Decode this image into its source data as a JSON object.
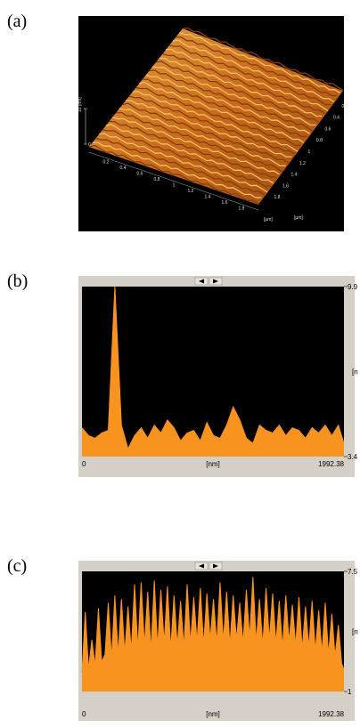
{
  "figure": {
    "labels": [
      "(a)",
      "(b)",
      "(c)"
    ]
  },
  "surface": {
    "xlim": [
      0,
      2
    ],
    "xticks": [
      0.2,
      0.4,
      0.6,
      0.8,
      1.0,
      1.2,
      1.4,
      1.6,
      1.8
    ],
    "xunit": "[µm]",
    "ylim": [
      0,
      2
    ],
    "yticks": [
      0.2,
      0.4,
      0.6,
      0.8,
      1.0,
      1.2,
      1.4,
      1.6,
      1.8
    ],
    "yunit": "[µm]",
    "zlim": [
      0,
      15
    ],
    "zticks": [
      0,
      {
        "value": 15,
        "label": "15 [nm]"
      }
    ]
  },
  "chart_data": [
    {
      "type": "area",
      "color": "#f7931e",
      "xlabel": "[nm]",
      "ylabel": "[n",
      "xlim": [
        0,
        1992.38
      ],
      "xticks": [
        0,
        1992.38
      ],
      "ylim": [
        3.4,
        9.9
      ],
      "yticks": [
        9.9,
        3.4
      ],
      "x": [
        0,
        50,
        100,
        150,
        200,
        250,
        300,
        350,
        400,
        450,
        500,
        550,
        600,
        650,
        700,
        750,
        800,
        850,
        900,
        950,
        1000,
        1050,
        1100,
        1150,
        1200,
        1250,
        1300,
        1350,
        1400,
        1450,
        1500,
        1550,
        1600,
        1650,
        1700,
        1750,
        1800,
        1850,
        1900,
        1950,
        1992.38
      ],
      "values": [
        4.5,
        4.2,
        4.1,
        4.3,
        4.4,
        9.9,
        4.6,
        3.7,
        4.2,
        4.5,
        4.1,
        4.6,
        4.3,
        4.8,
        4.5,
        4.0,
        4.3,
        4.4,
        4.0,
        4.7,
        4.2,
        4.1,
        4.6,
        5.3,
        4.8,
        4.1,
        3.9,
        4.6,
        4.4,
        4.3,
        4.6,
        4.2,
        4.5,
        4.4,
        4.1,
        4.5,
        4.3,
        4.6,
        4.2,
        4.6,
        3.9
      ]
    },
    {
      "type": "area",
      "color": "#f7931e",
      "xlabel": "[nm]",
      "ylabel": "[n",
      "xlim": [
        0,
        1992.38
      ],
      "xticks": [
        0,
        1992.38
      ],
      "ylim": [
        1.0,
        7.5
      ],
      "yticks": [
        7.5,
        1.0
      ],
      "x": [
        0,
        25,
        50,
        75,
        100,
        125,
        150,
        175,
        200,
        225,
        250,
        275,
        300,
        325,
        350,
        375,
        400,
        425,
        450,
        475,
        500,
        525,
        550,
        575,
        600,
        625,
        650,
        675,
        700,
        725,
        750,
        775,
        800,
        825,
        850,
        875,
        900,
        925,
        950,
        975,
        1000,
        1025,
        1050,
        1075,
        1100,
        1125,
        1150,
        1175,
        1200,
        1225,
        1250,
        1275,
        1300,
        1325,
        1350,
        1375,
        1400,
        1425,
        1450,
        1475,
        1500,
        1525,
        1550,
        1575,
        1600,
        1625,
        1650,
        1675,
        1700,
        1725,
        1750,
        1775,
        1800,
        1825,
        1850,
        1875,
        1900,
        1925,
        1950,
        1975,
        1992.38
      ],
      "values": [
        2.0,
        5.3,
        2.2,
        3.8,
        2.4,
        5.5,
        2.6,
        3.0,
        5.8,
        2.8,
        6.2,
        3.0,
        6.0,
        3.1,
        5.6,
        3.2,
        6.8,
        3.3,
        6.9,
        3.5,
        6.4,
        3.2,
        7.0,
        3.4,
        6.5,
        3.6,
        6.7,
        3.3,
        6.2,
        3.5,
        5.9,
        3.4,
        6.8,
        3.6,
        6.1,
        3.7,
        6.6,
        3.5,
        6.3,
        3.8,
        6.0,
        3.6,
        6.9,
        3.7,
        6.4,
        3.5,
        6.2,
        3.8,
        5.8,
        3.6,
        6.5,
        3.9,
        7.2,
        3.7,
        6.0,
        3.5,
        6.6,
        3.8,
        6.3,
        3.6,
        5.9,
        3.4,
        6.2,
        3.7,
        5.7,
        3.5,
        6.1,
        3.3,
        5.6,
        3.4,
        5.9,
        3.2,
        5.4,
        3.1,
        5.8,
        3.0,
        5.2,
        2.9,
        4.6,
        2.5,
        2.2
      ]
    }
  ]
}
